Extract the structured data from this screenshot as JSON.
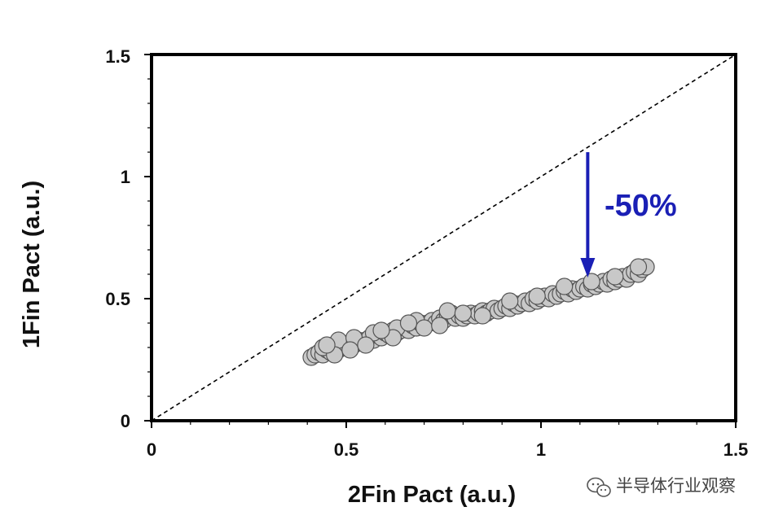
{
  "chart_data": {
    "type": "scatter",
    "xlabel": "2Fin Pact (a.u.)",
    "ylabel": "1Fin Pact (a.u.)",
    "xlim": [
      0,
      1.5
    ],
    "ylim": [
      0,
      1.5
    ],
    "x_ticks": [
      "0",
      "0.5",
      "1",
      "1.5"
    ],
    "y_ticks": [
      "0",
      "0.5",
      "1",
      "1.5"
    ],
    "grid": false,
    "reference_line": {
      "style": "dashed",
      "from": [
        0,
        0
      ],
      "to": [
        1.5,
        1.5
      ]
    },
    "annotation": {
      "text": "-50%",
      "arrow_x": 1.12,
      "arrow_from_y": 1.1,
      "arrow_to_y": 0.6,
      "color": "#1a1fb5"
    },
    "series": [
      {
        "marker_color": "#c8c8c8",
        "points": [
          [
            0.41,
            0.26
          ],
          [
            0.42,
            0.27
          ],
          [
            0.43,
            0.28
          ],
          [
            0.44,
            0.27
          ],
          [
            0.45,
            0.29
          ],
          [
            0.46,
            0.28
          ],
          [
            0.47,
            0.3
          ],
          [
            0.48,
            0.29
          ],
          [
            0.49,
            0.31
          ],
          [
            0.5,
            0.3
          ],
          [
            0.51,
            0.32
          ],
          [
            0.52,
            0.31
          ],
          [
            0.53,
            0.33
          ],
          [
            0.54,
            0.32
          ],
          [
            0.55,
            0.33
          ],
          [
            0.56,
            0.34
          ],
          [
            0.57,
            0.33
          ],
          [
            0.58,
            0.35
          ],
          [
            0.59,
            0.34
          ],
          [
            0.6,
            0.36
          ],
          [
            0.61,
            0.35
          ],
          [
            0.62,
            0.37
          ],
          [
            0.63,
            0.36
          ],
          [
            0.64,
            0.37
          ],
          [
            0.65,
            0.38
          ],
          [
            0.66,
            0.37
          ],
          [
            0.67,
            0.39
          ],
          [
            0.68,
            0.38
          ],
          [
            0.69,
            0.4
          ],
          [
            0.7,
            0.39
          ],
          [
            0.71,
            0.4
          ],
          [
            0.72,
            0.41
          ],
          [
            0.73,
            0.4
          ],
          [
            0.74,
            0.42
          ],
          [
            0.75,
            0.41
          ],
          [
            0.76,
            0.43
          ],
          [
            0.77,
            0.44
          ],
          [
            0.78,
            0.42
          ],
          [
            0.79,
            0.43
          ],
          [
            0.8,
            0.42
          ],
          [
            0.81,
            0.43
          ],
          [
            0.82,
            0.44
          ],
          [
            0.83,
            0.43
          ],
          [
            0.84,
            0.44
          ],
          [
            0.85,
            0.45
          ],
          [
            0.86,
            0.44
          ],
          [
            0.87,
            0.45
          ],
          [
            0.88,
            0.46
          ],
          [
            0.89,
            0.45
          ],
          [
            0.9,
            0.46
          ],
          [
            0.91,
            0.47
          ],
          [
            0.92,
            0.46
          ],
          [
            0.93,
            0.48
          ],
          [
            0.94,
            0.47
          ],
          [
            0.95,
            0.48
          ],
          [
            0.96,
            0.49
          ],
          [
            0.97,
            0.48
          ],
          [
            0.98,
            0.5
          ],
          [
            0.99,
            0.49
          ],
          [
            1.0,
            0.5
          ],
          [
            1.01,
            0.51
          ],
          [
            1.02,
            0.5
          ],
          [
            1.03,
            0.52
          ],
          [
            1.04,
            0.51
          ],
          [
            1.05,
            0.52
          ],
          [
            1.06,
            0.53
          ],
          [
            1.07,
            0.52
          ],
          [
            1.08,
            0.54
          ],
          [
            1.09,
            0.53
          ],
          [
            1.1,
            0.54
          ],
          [
            1.11,
            0.55
          ],
          [
            1.12,
            0.54
          ],
          [
            1.13,
            0.56
          ],
          [
            1.14,
            0.55
          ],
          [
            1.15,
            0.56
          ],
          [
            1.16,
            0.57
          ],
          [
            1.17,
            0.56
          ],
          [
            1.18,
            0.58
          ],
          [
            1.19,
            0.57
          ],
          [
            1.2,
            0.58
          ],
          [
            1.21,
            0.59
          ],
          [
            1.22,
            0.58
          ],
          [
            1.23,
            0.6
          ],
          [
            1.24,
            0.61
          ],
          [
            1.25,
            0.6
          ],
          [
            1.26,
            0.62
          ],
          [
            1.27,
            0.63
          ],
          [
            0.44,
            0.3
          ],
          [
            0.48,
            0.33
          ],
          [
            0.52,
            0.34
          ],
          [
            0.57,
            0.36
          ],
          [
            0.63,
            0.38
          ],
          [
            0.68,
            0.41
          ],
          [
            0.76,
            0.45
          ],
          [
            0.7,
            0.38
          ],
          [
            0.62,
            0.34
          ],
          [
            0.55,
            0.31
          ],
          [
            0.47,
            0.27
          ],
          [
            0.85,
            0.43
          ],
          [
            0.92,
            0.49
          ],
          [
            0.99,
            0.51
          ],
          [
            1.06,
            0.55
          ],
          [
            1.13,
            0.57
          ],
          [
            1.19,
            0.59
          ],
          [
            1.25,
            0.63
          ],
          [
            0.8,
            0.44
          ],
          [
            0.74,
            0.39
          ],
          [
            0.66,
            0.4
          ],
          [
            0.59,
            0.37
          ],
          [
            0.51,
            0.29
          ],
          [
            0.45,
            0.31
          ]
        ]
      }
    ]
  },
  "watermark": {
    "text": "半导体行业观察",
    "icon": "wechat-logo"
  }
}
